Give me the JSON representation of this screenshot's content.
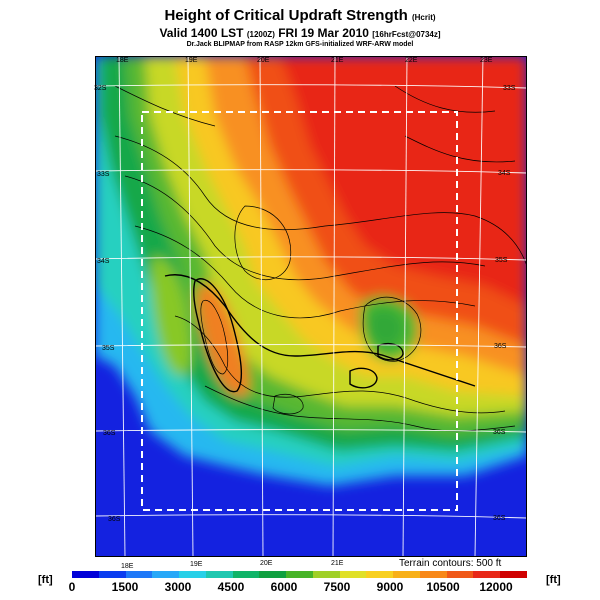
{
  "title": {
    "main": "Height of Critical Updraft Strength",
    "main_suffix": "(Hcrit)",
    "valid": "Valid 1400 LST",
    "valid_z": "(1200Z)",
    "valid_date": "FRI 19 Mar 2010",
    "valid_fcst": "[16hrFcst@0734z]",
    "credit": "Dr.Jack BLIPMAP from RASP 12km GFS-initialized WRF-ARW model"
  },
  "map": {
    "top_lon_labels": [
      "18E",
      "19E",
      "20E",
      "21E",
      "22E",
      "23E"
    ],
    "bottom_lon_labels": [
      "18E",
      "19E",
      "20E",
      "21E"
    ],
    "left_lat_labels": [
      "32S",
      "33S",
      "34S",
      "35S",
      "36S",
      "36S"
    ],
    "right_lat_labels": [
      "33S",
      "34S",
      "35S",
      "36S",
      "36S",
      "36S"
    ],
    "terrain_note": "Terrain contours: 500 ft"
  },
  "colorbar": {
    "unit_left": "[ft]",
    "unit_right": "[ft]",
    "ticks": [
      "0",
      "1500",
      "3000",
      "4500",
      "6000",
      "7500",
      "9000",
      "10500",
      "12000"
    ],
    "colors": [
      "#0000d8",
      "#0a3cf0",
      "#1e78f8",
      "#28a8f8",
      "#28d0e8",
      "#20c8b0",
      "#10b468",
      "#10a040",
      "#48b428",
      "#a0d028",
      "#e0e028",
      "#f8d020",
      "#f8b018",
      "#f88818",
      "#f05818",
      "#e82818",
      "#d00000"
    ]
  }
}
